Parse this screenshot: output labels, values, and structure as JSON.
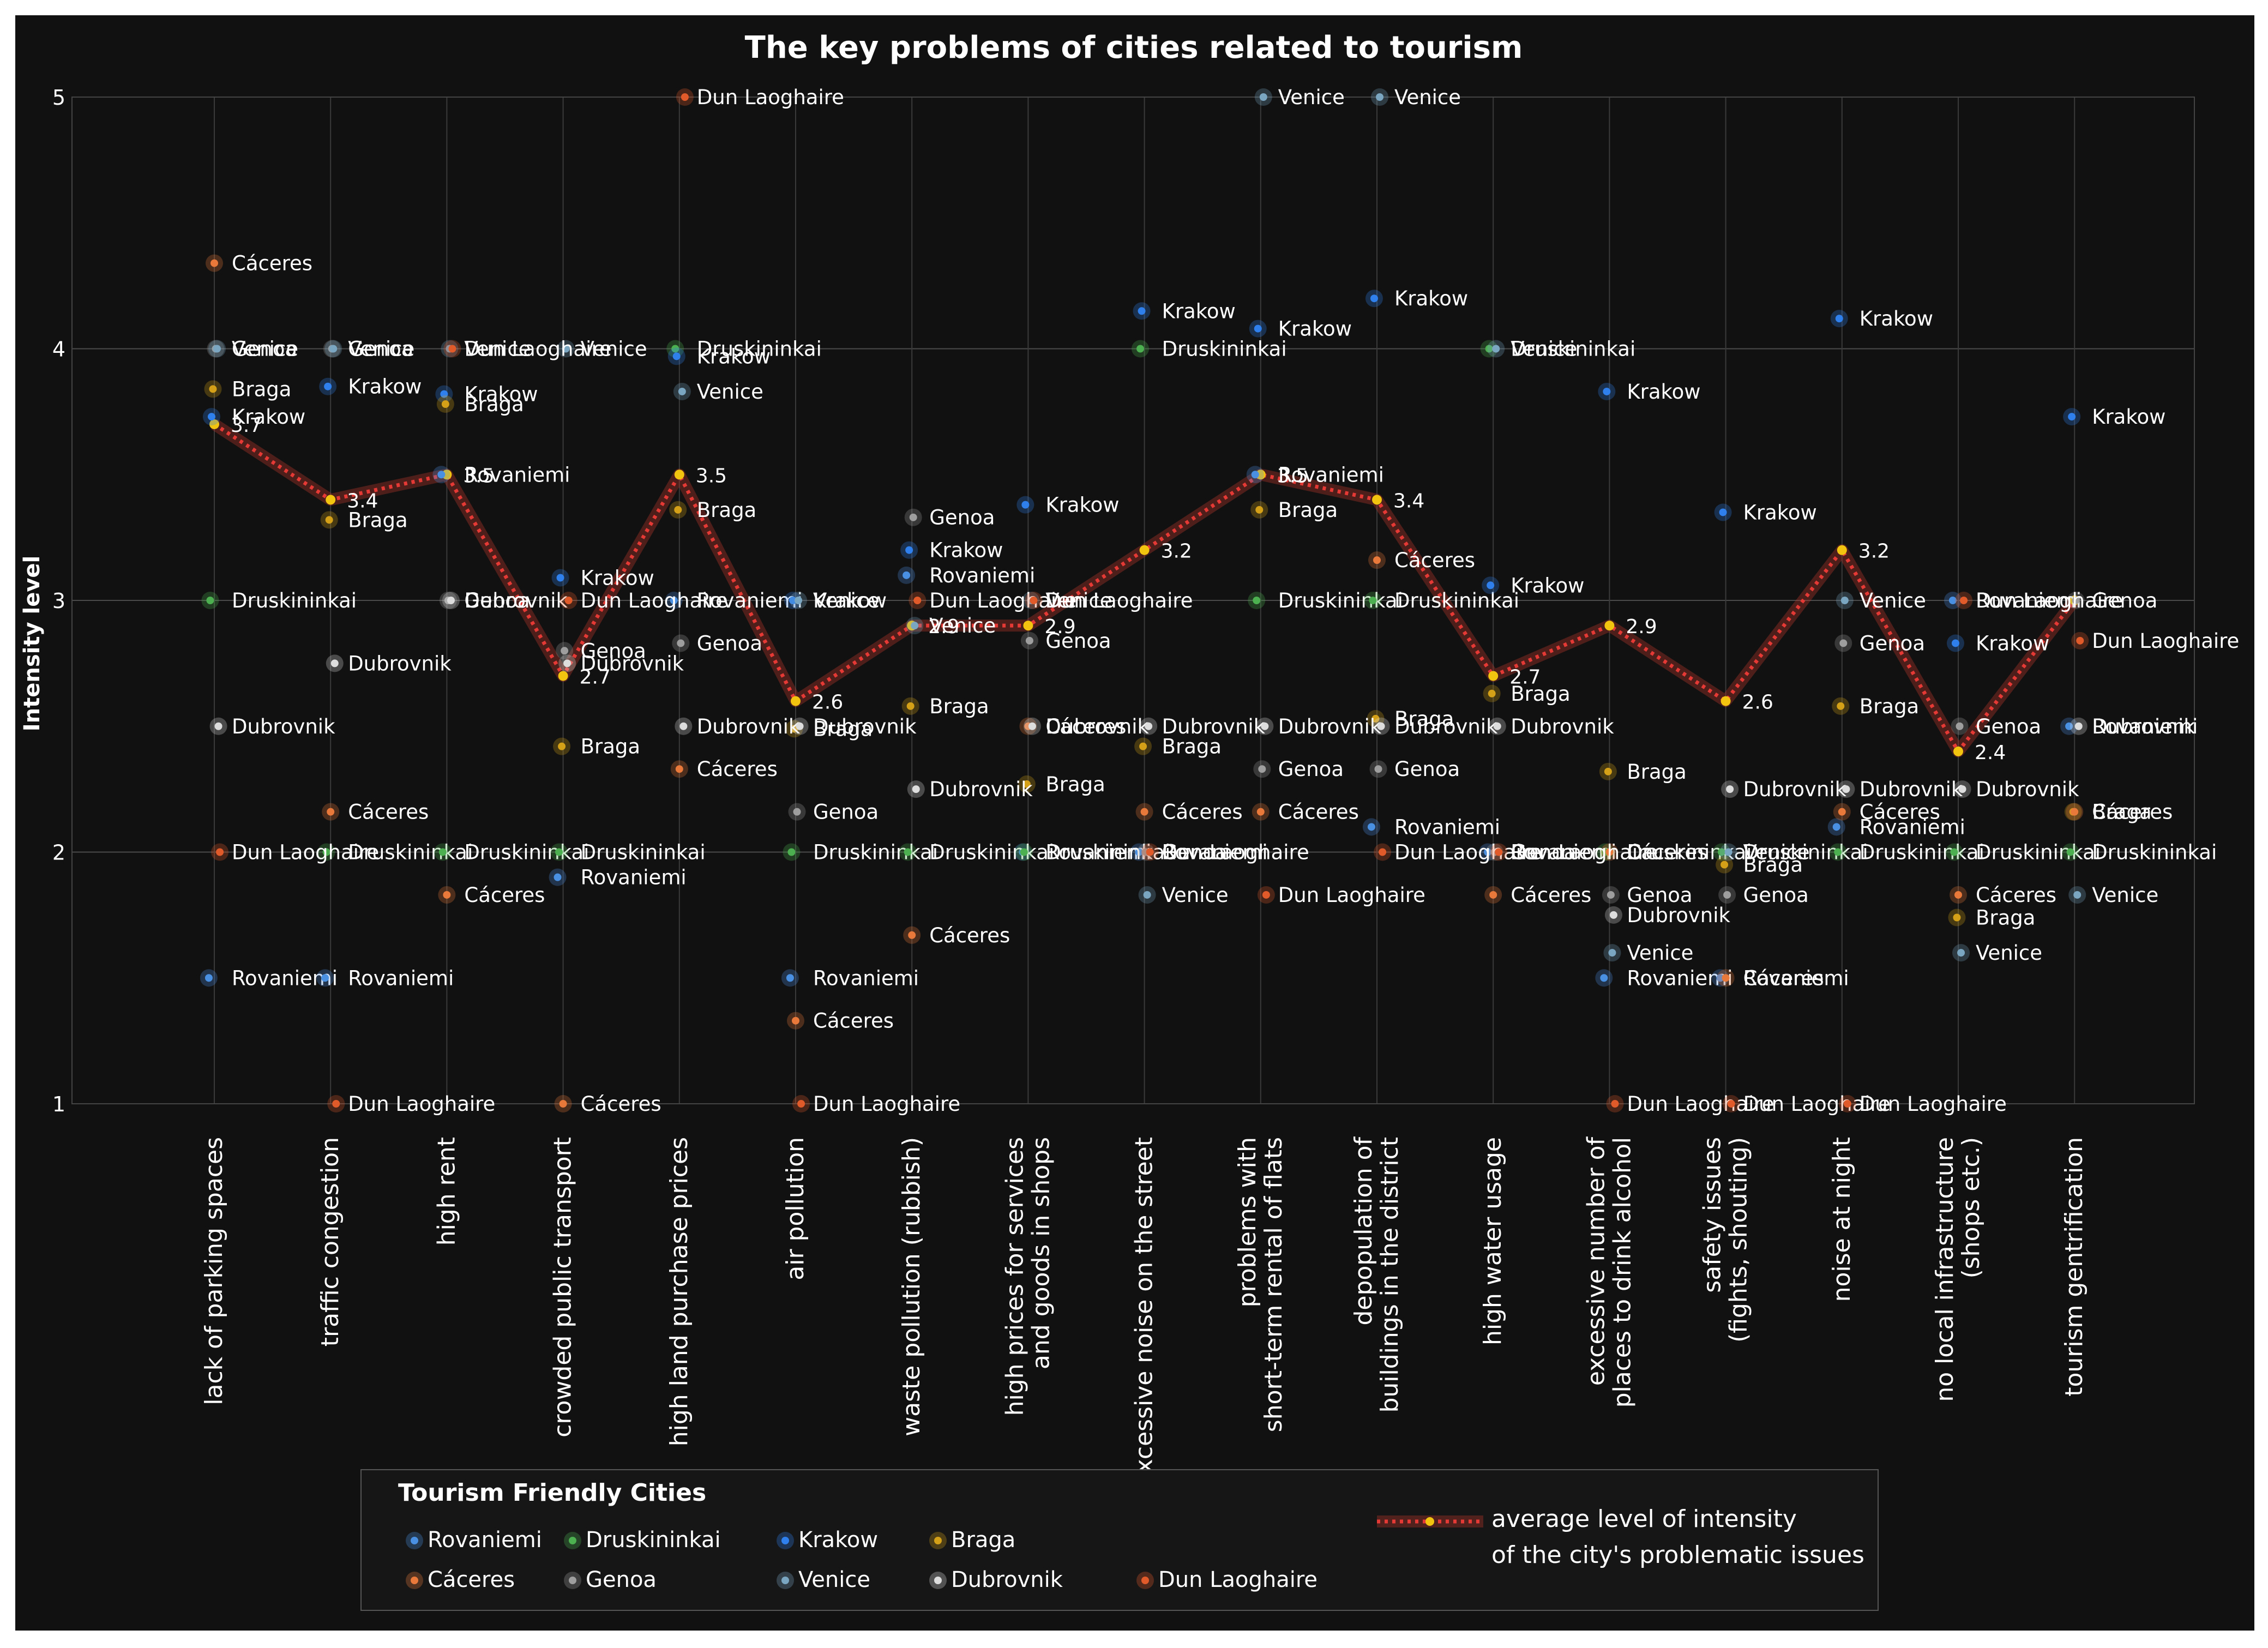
{
  "chart_data": {
    "type": "scatter",
    "title": "The key problems of cities related to tourism",
    "ylabel": "Intensity level",
    "xlabel": "",
    "ylim": [
      1,
      5
    ],
    "yticks": [
      1,
      2,
      3,
      4,
      5
    ],
    "grid": true,
    "categories": [
      "lack of parking spaces",
      "traffic congestion",
      "high rent",
      "crowded public transport",
      "high land purchase prices",
      "air pollution",
      "waste pollution (rubbish)",
      "high prices for services|and goods in shops",
      "excessive noise on the street",
      "problems with|short-term rental of flats",
      "depopulation of|buildings in the district",
      "high water usage",
      "excessive number of|places to drink alcohol",
      "safety issues|(fights, shouting)",
      "noise at night",
      "no local infrastructure|(shops etc.)",
      "tourism gentrification"
    ],
    "series": [
      {
        "name": "Rovaniemi",
        "color": "#4a90e2",
        "values": [
          1.5,
          1.5,
          3.5,
          1.9,
          3.0,
          1.5,
          3.1,
          2.0,
          2.0,
          3.5,
          2.1,
          2.0,
          1.5,
          1.5,
          2.1,
          3.0,
          2.5
        ]
      },
      {
        "name": "Druskininkai",
        "color": "#4caf50",
        "values": [
          3.0,
          2.0,
          2.0,
          2.0,
          4.0,
          2.0,
          2.0,
          2.0,
          4.0,
          3.0,
          3.0,
          4.0,
          2.0,
          2.0,
          2.0,
          2.0,
          2.0
        ]
      },
      {
        "name": "Krakow",
        "color": "#2f80ed",
        "values": [
          3.73,
          3.85,
          3.82,
          3.09,
          3.97,
          3.0,
          3.2,
          3.38,
          4.15,
          4.08,
          4.2,
          3.06,
          3.83,
          3.35,
          4.12,
          2.83,
          3.73
        ]
      },
      {
        "name": "Braga",
        "color": "#d4a017",
        "values": [
          3.84,
          3.32,
          3.78,
          2.42,
          3.36,
          2.49,
          2.58,
          2.27,
          2.42,
          3.36,
          2.53,
          2.63,
          2.32,
          1.95,
          2.58,
          1.74,
          2.16
        ]
      },
      {
        "name": "Cáceres",
        "color": "#e8793a",
        "values": [
          4.34,
          2.16,
          1.83,
          1.0,
          2.33,
          1.33,
          1.67,
          2.5,
          2.16,
          2.16,
          3.16,
          1.83,
          2.0,
          1.5,
          2.16,
          1.83,
          2.16
        ]
      },
      {
        "name": "Genoa",
        "color": "#9e9e9e",
        "values": [
          4.0,
          4.0,
          3.0,
          2.8,
          2.83,
          2.16,
          3.33,
          2.84,
          2.0,
          2.33,
          2.33,
          2.0,
          1.83,
          1.83,
          2.83,
          2.5,
          3.0
        ]
      },
      {
        "name": "Venice",
        "color": "#7aa6c2",
        "values": [
          4.0,
          4.0,
          4.0,
          4.0,
          3.83,
          3.0,
          2.9,
          3.0,
          1.83,
          5.0,
          5.0,
          4.0,
          1.6,
          2.0,
          3.0,
          1.6,
          1.83
        ]
      },
      {
        "name": "Dubrovnik",
        "color": "#dddddd",
        "values": [
          2.5,
          2.75,
          3.0,
          2.75,
          2.5,
          2.5,
          2.25,
          2.5,
          2.5,
          2.5,
          2.5,
          2.5,
          1.75,
          2.25,
          2.25,
          2.25,
          2.5
        ]
      },
      {
        "name": "Dun Laoghaire",
        "color": "#e05a2a",
        "values": [
          2.0,
          1.0,
          4.0,
          3.0,
          5.0,
          1.0,
          3.0,
          3.0,
          2.0,
          1.83,
          2.0,
          2.0,
          1.0,
          1.0,
          1.0,
          3.0,
          2.84
        ]
      }
    ],
    "average": {
      "name": "average level of intensity|of the city's problematic issues",
      "color": "#c0392b",
      "values": [
        3.7,
        3.4,
        3.5,
        2.7,
        3.5,
        2.6,
        2.9,
        2.9,
        3.2,
        3.5,
        3.4,
        2.7,
        2.9,
        2.6,
        3.2,
        2.4,
        3.0
      ],
      "labels": [
        "3.7",
        "3.4",
        "3.5",
        "2.7",
        "3.5",
        "2.6",
        "2.9",
        "2.9",
        "3.2",
        "3.5",
        "3.4",
        "2.7",
        "2.9",
        "2.6",
        "3.2",
        "2.4",
        ""
      ]
    },
    "legend": {
      "title": "Tourism Friendly Cities",
      "placement": "bottom"
    }
  }
}
